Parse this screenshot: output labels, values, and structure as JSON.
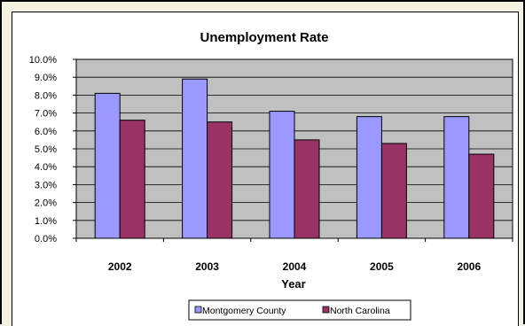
{
  "chart_data": {
    "type": "bar",
    "title": "Unemployment Rate",
    "xlabel": "Year",
    "ylabel": "",
    "categories": [
      "2002",
      "2003",
      "2004",
      "2005",
      "2006"
    ],
    "series": [
      {
        "name": "Montgomery County",
        "values": [
          8.1,
          8.9,
          7.1,
          6.8,
          6.8
        ],
        "color": "#9999FF"
      },
      {
        "name": "North Carolina",
        "values": [
          6.6,
          6.5,
          5.5,
          5.3,
          4.7
        ],
        "color": "#993366"
      }
    ],
    "ylim": [
      0,
      10
    ],
    "yticks": [
      "0.0%",
      "1.0%",
      "2.0%",
      "3.0%",
      "4.0%",
      "5.0%",
      "6.0%",
      "7.0%",
      "8.0%",
      "9.0%",
      "10.0%"
    ],
    "grid": true,
    "plot_background": "#C0C0C0",
    "legend_position": "bottom"
  }
}
